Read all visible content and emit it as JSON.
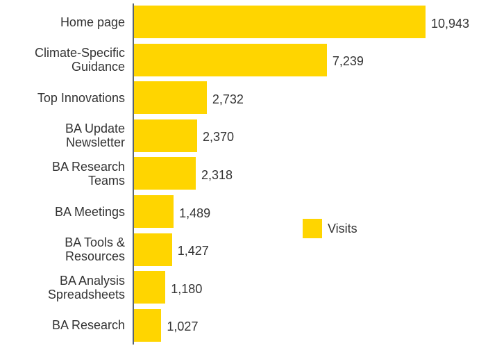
{
  "chart_data": {
    "type": "bar",
    "orientation": "horizontal",
    "categories": [
      "Home page",
      "Climate-Specific\nGuidance",
      "Top Innovations",
      "BA Update\nNewsletter",
      "BA Research\nTeams",
      "BA Meetings",
      "BA Tools &\nResources",
      "BA Analysis\nSpreadsheets",
      "BA Research"
    ],
    "series": [
      {
        "name": "Visits",
        "color": "#ffd500",
        "values": [
          10943,
          7239,
          2732,
          2370,
          2318,
          1489,
          1427,
          1180,
          1027
        ],
        "value_labels": [
          "10,943",
          "7,239",
          "2,732",
          "2,370",
          "2,318",
          "1,489",
          "1,427",
          "1,180",
          "1,027"
        ]
      }
    ],
    "legend": "center-right"
  }
}
